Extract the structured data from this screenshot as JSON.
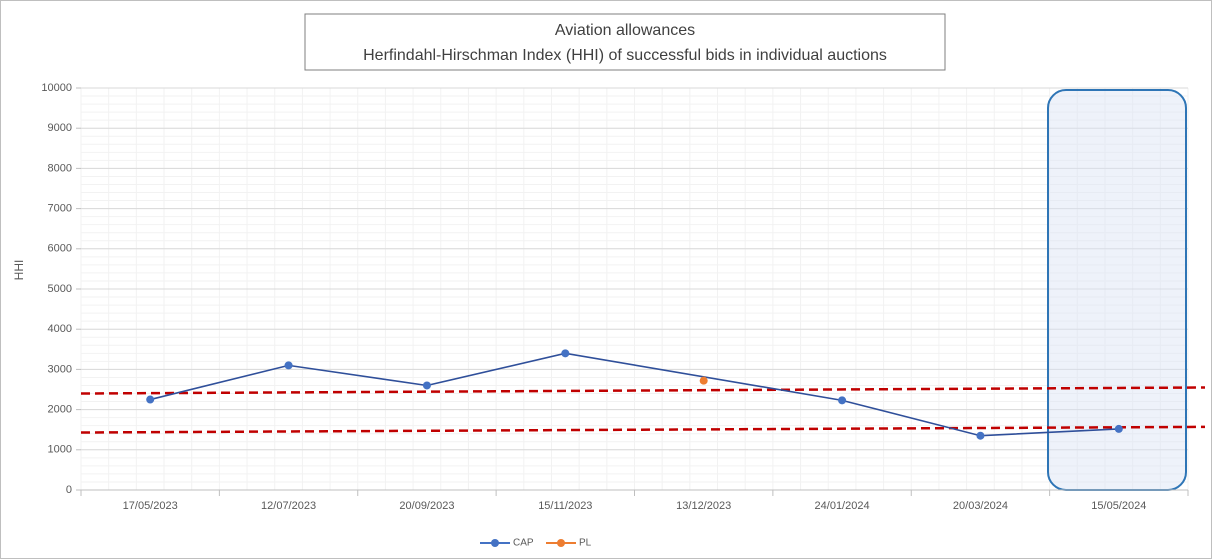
{
  "chart_data": {
    "type": "line",
    "title": [
      "Aviation allowances",
      "Herfindahl-Hirschman Index (HHI) of successful bids in individual auctions"
    ],
    "ylabel": "HHI",
    "categories": [
      "17/05/2023",
      "12/07/2023",
      "20/09/2023",
      "15/11/2023",
      "13/12/2023",
      "24/01/2024",
      "20/03/2024",
      "15/05/2024"
    ],
    "series": [
      {
        "name": "CAP",
        "color": "#4472c4",
        "values": [
          2250,
          3100,
          2600,
          3400,
          null,
          2230,
          1350,
          1520
        ]
      },
      {
        "name": "PL",
        "color": "#ed7d31",
        "values": [
          null,
          null,
          null,
          null,
          2720,
          null,
          null,
          null
        ]
      }
    ],
    "connect_gaps": true,
    "reference_lines": [
      {
        "color": "#c00000",
        "values": [
          2400,
          2550
        ]
      },
      {
        "color": "#c00000",
        "values": [
          1430,
          1570
        ]
      }
    ],
    "ylim": [
      0,
      10000
    ],
    "yticks": [
      0,
      1000,
      2000,
      3000,
      4000,
      5000,
      6000,
      7000,
      8000,
      9000,
      10000
    ],
    "grid": true,
    "legend": "bottom"
  }
}
